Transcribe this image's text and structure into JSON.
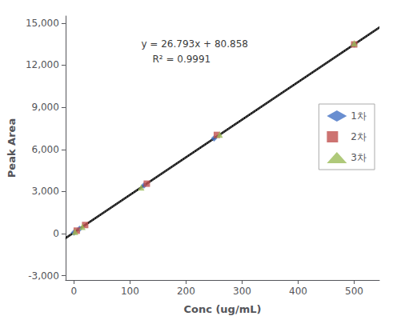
{
  "chart_data": {
    "type": "scatter",
    "xlabel": "Conc (ug/mL)",
    "ylabel": "Peak Area",
    "xlim": [
      -15,
      545
    ],
    "ylim": [
      -3300,
      15500
    ],
    "xticks": [
      0,
      100,
      200,
      300,
      400,
      500
    ],
    "yticks": [
      {
        "value": -3000,
        "label": "-3,000"
      },
      0,
      {
        "value": 3000,
        "label": "3,000"
      },
      {
        "value": 6000,
        "label": "6,000"
      },
      {
        "value": 9000,
        "label": "9,000"
      },
      {
        "value": 12000,
        "label": "12,000"
      },
      {
        "value": 15000,
        "label": "15,000"
      }
    ],
    "grid": false,
    "legend": "right",
    "series": [
      {
        "name": "1차",
        "type": "scatter",
        "marker": "diamond",
        "color": "#4472C4",
        "x": [
          0,
          10,
          125,
          250,
          500
        ],
        "values": [
          81,
          349,
          3430,
          6779,
          13478
        ]
      },
      {
        "name": "2차",
        "type": "scatter",
        "marker": "square",
        "color": "#C0504D",
        "x": [
          5,
          20,
          130,
          255,
          500
        ],
        "values": [
          215,
          617,
          3560,
          7031,
          13477
        ]
      },
      {
        "name": "3차",
        "type": "scatter",
        "marker": "triangle",
        "color": "#9BBB59",
        "x": [
          2,
          15,
          120,
          260,
          500
        ],
        "values": [
          134,
          482,
          3294,
          7054,
          13558
        ]
      },
      {
        "type": "line",
        "color": "#000000",
        "x": [
          -15,
          545
        ],
        "values": [
          -381.037,
          14623.043
        ]
      },
      {
        "type": "line",
        "color": "#000000",
        "x": [
          -15,
          545
        ],
        "values": [
          -321.037,
          14683.043
        ]
      },
      {
        "type": "line",
        "color": "#000000",
        "x": [
          -15,
          545
        ],
        "values": [
          -261.037,
          14743.043
        ]
      }
    ],
    "annotations": [
      {
        "text": "y = 26.793x + 80.858",
        "x": 120,
        "y": 13500
      },
      {
        "text": "R² = 0.9991",
        "x": 140,
        "y": 12400
      }
    ]
  }
}
